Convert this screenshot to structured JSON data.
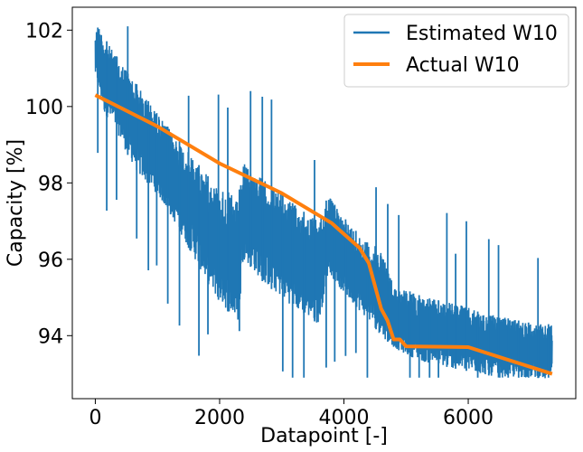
{
  "chart_data": {
    "type": "line",
    "xlabel": "Datapoint [-]",
    "ylabel": "Capacity [%]",
    "xlim": [
      -370,
      7730
    ],
    "ylim": [
      92.35,
      102.6
    ],
    "x_ticks": [
      0,
      2000,
      4000,
      6000
    ],
    "y_ticks": [
      94,
      96,
      98,
      100,
      102
    ],
    "grid": false,
    "legend_position": "top-right",
    "series": [
      {
        "name": "Estimated W10",
        "color": "#1f77b4",
        "style": "noisy-line",
        "x": [
          0,
          60,
          150,
          300,
          500,
          700,
          1000,
          1300,
          1600,
          1900,
          2200,
          2330,
          2345,
          2400,
          2700,
          3000,
          3300,
          3600,
          3750,
          3900,
          4100,
          4400,
          4600,
          4800,
          5000,
          5300,
          5600,
          5900,
          6200,
          6500,
          6800,
          7100,
          7350
        ],
        "upper": [
          102.0,
          102.1,
          101.8,
          101.4,
          101.0,
          100.5,
          99.8,
          99.2,
          98.6,
          98.0,
          97.7,
          97.4,
          98.3,
          98.5,
          98.1,
          97.7,
          97.3,
          97.0,
          97.7,
          97.3,
          96.9,
          96.4,
          96.3,
          95.3,
          95.2,
          95.0,
          94.9,
          94.8,
          94.6,
          94.5,
          94.4,
          94.3,
          94.3
        ],
        "lower": [
          100.8,
          100.4,
          99.8,
          99.5,
          98.8,
          98.2,
          97.7,
          96.9,
          96.0,
          95.1,
          94.5,
          94.3,
          95.8,
          96.0,
          95.4,
          95.0,
          94.6,
          94.3,
          95.7,
          95.3,
          94.9,
          94.4,
          94.0,
          93.7,
          93.5,
          93.3,
          93.2,
          93.1,
          93.0,
          92.9,
          92.9,
          92.9,
          92.8
        ],
        "spike_max": 101.9,
        "spike_min": 96.2
      },
      {
        "name": "Actual W10",
        "color": "#ff7f0e",
        "style": "solid",
        "x": [
          0,
          1000,
          2000,
          3000,
          3800,
          4250,
          4400,
          4500,
          4600,
          4700,
          4800,
          4900,
          5000,
          6000,
          7350
        ],
        "y": [
          100.3,
          99.48,
          98.51,
          97.73,
          96.95,
          96.3,
          95.9,
          95.3,
          94.7,
          94.4,
          93.9,
          93.9,
          93.72,
          93.7,
          93.0
        ]
      }
    ]
  }
}
